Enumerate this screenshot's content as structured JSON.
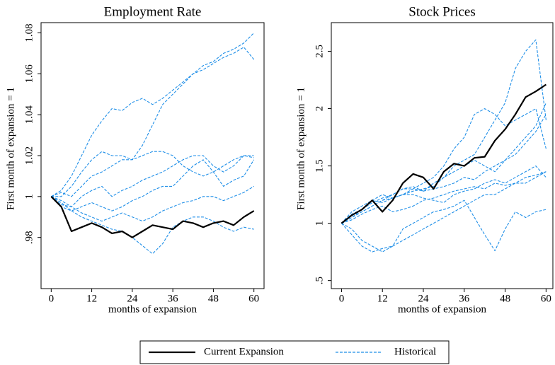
{
  "chart_data": [
    {
      "type": "line",
      "title": "Employment Rate",
      "x_label": "months of expansion",
      "y_label": "First month of expansion = 1",
      "x": [
        0,
        3,
        6,
        9,
        12,
        15,
        18,
        21,
        24,
        27,
        30,
        33,
        36,
        39,
        42,
        45,
        48,
        51,
        54,
        57,
        60
      ],
      "xlim": [
        -3,
        63
      ],
      "xticks": [
        0,
        12,
        24,
        36,
        48,
        60
      ],
      "ylim": [
        0.955,
        1.085
      ],
      "yticks": [
        {
          "value": 0.98,
          "label": ".98"
        },
        1,
        1.02,
        1.04,
        1.06,
        1.08
      ],
      "series": [
        {
          "name": "Current Expansion",
          "color": "#000000",
          "style": "solid",
          "values": [
            1.0,
            0.995,
            0.983,
            0.985,
            0.987,
            0.985,
            0.982,
            0.983,
            0.98,
            0.983,
            0.986,
            0.985,
            0.984,
            0.988,
            0.987,
            0.985,
            0.987,
            0.988,
            0.986,
            0.99,
            0.993
          ]
        },
        {
          "name": "Historical",
          "color": "#1f8fe8",
          "style": "dashed",
          "values": [
            [
              1,
              1.003,
              1.01,
              1.02,
              1.03,
              1.037,
              1.043,
              1.042,
              1.046,
              1.048,
              1.045,
              1.048,
              1.052,
              1.056,
              1.06,
              1.064,
              1.066,
              1.07,
              1.072,
              1.075,
              1.08
            ],
            [
              1,
              1.0,
              1.005,
              1.012,
              1.018,
              1.022,
              1.02,
              1.02,
              1.018,
              1.025,
              1.035,
              1.045,
              1.05,
              1.055,
              1.06,
              1.062,
              1.065,
              1.068,
              1.07,
              1.073,
              1.067
            ],
            [
              1,
              1.002,
              1.0,
              1.005,
              1.01,
              1.012,
              1.015,
              1.018,
              1.018,
              1.02,
              1.022,
              1.022,
              1.02,
              1.015,
              1.012,
              1.01,
              1.012,
              1.015,
              1.018,
              1.02,
              1.02
            ],
            [
              1,
              0.998,
              0.995,
              1.0,
              1.003,
              1.005,
              1.0,
              1.003,
              1.005,
              1.008,
              1.01,
              1.012,
              1.015,
              1.018,
              1.02,
              1.02,
              1.015,
              1.012,
              1.015,
              1.02,
              1.019
            ],
            [
              1,
              0.997,
              0.993,
              0.995,
              0.997,
              0.995,
              0.993,
              0.995,
              0.998,
              1.0,
              1.003,
              1.005,
              1.005,
              1.01,
              1.015,
              1.018,
              1.012,
              1.005,
              1.008,
              1.01,
              1.018
            ],
            [
              1,
              0.996,
              0.995,
              0.992,
              0.99,
              0.988,
              0.99,
              0.992,
              0.99,
              0.988,
              0.99,
              0.993,
              0.995,
              0.997,
              0.998,
              1.0,
              1.0,
              0.998,
              1.0,
              1.002,
              1.005
            ],
            [
              1,
              0.995,
              0.993,
              0.99,
              0.988,
              0.986,
              0.984,
              0.983,
              0.98,
              0.976,
              0.972,
              0.977,
              0.985,
              0.988,
              0.99,
              0.99,
              0.988,
              0.985,
              0.983,
              0.985,
              0.984
            ]
          ]
        }
      ]
    },
    {
      "type": "line",
      "title": "Stock Prices",
      "x_label": "months of expansion",
      "y_label": "First month of expansion = 1",
      "x": [
        0,
        3,
        6,
        9,
        12,
        15,
        18,
        21,
        24,
        27,
        30,
        33,
        36,
        39,
        42,
        45,
        48,
        51,
        54,
        57,
        60
      ],
      "xlim": [
        -3,
        62
      ],
      "xticks": [
        0,
        12,
        24,
        36,
        48,
        60
      ],
      "ylim": [
        0.43,
        2.75
      ],
      "yticks": [
        {
          "value": 0.5,
          "label": ".5"
        },
        1,
        1.5,
        2,
        2.5
      ],
      "series": [
        {
          "color": "#000000",
          "style": "solid",
          "values": [
            1.0,
            1.07,
            1.12,
            1.2,
            1.1,
            1.2,
            1.35,
            1.43,
            1.4,
            1.3,
            1.45,
            1.52,
            1.5,
            1.57,
            1.58,
            1.72,
            1.82,
            1.95,
            2.1,
            2.15,
            2.21
          ]
        },
        {
          "color": "#1f8fe8",
          "style": "dashed",
          "values": [
            [
              1,
              1.05,
              1.1,
              1.15,
              1.2,
              1.25,
              1.3,
              1.32,
              1.28,
              1.35,
              1.4,
              1.5,
              1.55,
              1.6,
              1.75,
              1.9,
              2.05,
              2.35,
              2.5,
              2.6,
              1.9
            ],
            [
              1,
              1.05,
              1.12,
              1.18,
              1.22,
              1.25,
              1.3,
              1.3,
              1.35,
              1.4,
              1.5,
              1.65,
              1.75,
              1.95,
              2.0,
              1.95,
              1.85,
              1.9,
              1.95,
              2.0,
              1.65
            ],
            [
              1,
              1.08,
              1.12,
              1.2,
              1.25,
              1.22,
              1.25,
              1.28,
              1.3,
              1.32,
              1.4,
              1.45,
              1.5,
              1.55,
              1.5,
              1.45,
              1.55,
              1.65,
              1.75,
              1.85,
              2.05
            ],
            [
              1,
              1.1,
              1.15,
              1.2,
              1.18,
              1.22,
              1.25,
              1.3,
              1.28,
              1.3,
              1.32,
              1.35,
              1.4,
              1.38,
              1.45,
              1.5,
              1.55,
              1.6,
              1.7,
              1.8,
              1.95
            ],
            [
              1,
              1.05,
              1.1,
              1.15,
              1.2,
              1.22,
              1.25,
              1.25,
              1.22,
              1.2,
              1.18,
              1.25,
              1.28,
              1.3,
              1.35,
              1.38,
              1.35,
              1.4,
              1.45,
              1.5,
              1.4
            ],
            [
              1,
              1.03,
              1.08,
              1.12,
              1.15,
              1.1,
              1.12,
              1.15,
              1.2,
              1.22,
              1.25,
              1.28,
              1.3,
              1.32,
              1.3,
              1.35,
              1.33,
              1.35,
              1.4,
              1.42,
              1.45
            ],
            [
              1,
              0.95,
              0.85,
              0.8,
              0.75,
              0.8,
              0.95,
              1.0,
              1.05,
              1.1,
              1.12,
              1.15,
              1.2,
              1.05,
              0.9,
              0.76,
              0.95,
              1.1,
              1.05,
              1.1,
              1.12
            ],
            [
              1,
              0.9,
              0.8,
              0.75,
              0.78,
              0.8,
              0.85,
              0.9,
              0.95,
              1.0,
              1.05,
              1.1,
              1.15,
              1.2,
              1.25,
              1.25,
              1.3,
              1.35,
              1.35,
              1.4,
              1.45
            ]
          ]
        }
      ]
    }
  ]
}
